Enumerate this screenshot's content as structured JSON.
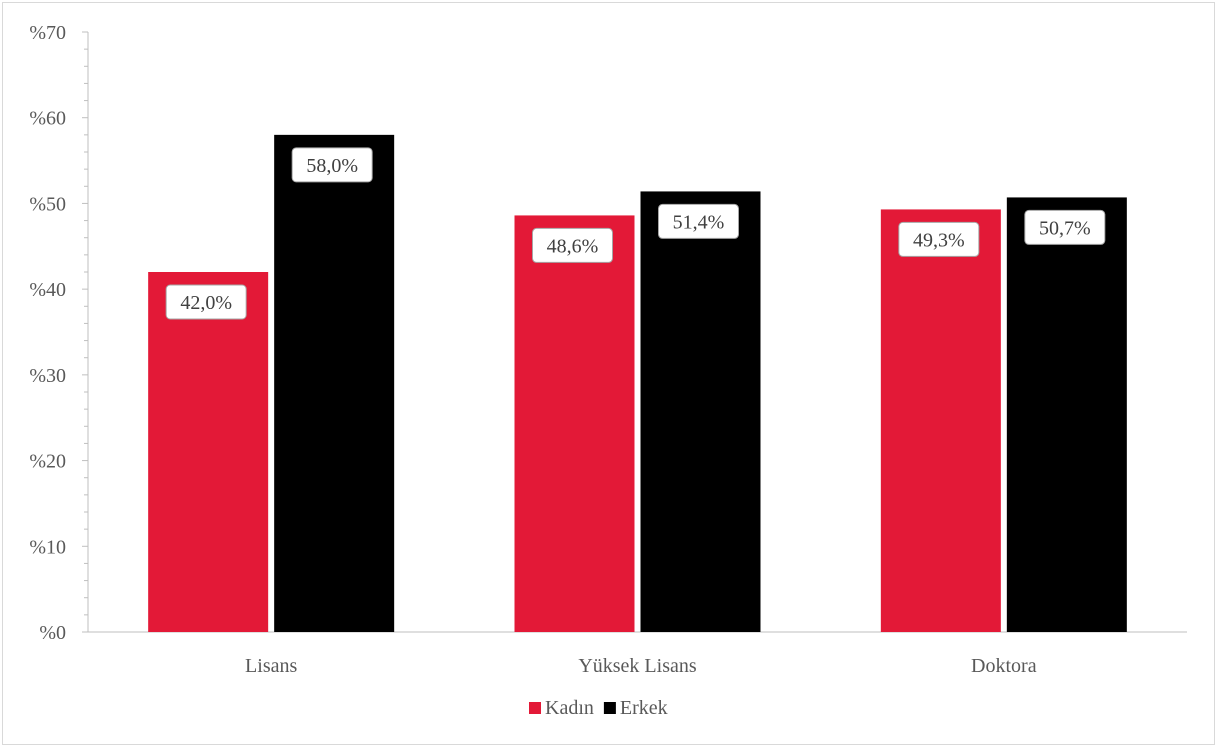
{
  "chart_data": {
    "type": "bar",
    "categories": [
      "Lisans",
      "Yüksek Lisans",
      "Doktora"
    ],
    "series": [
      {
        "name": "Kadın",
        "values": [
          42.0,
          48.6,
          49.3
        ],
        "labels": [
          "42,0%",
          "48,6%",
          "49,3%"
        ],
        "color": "#e31937"
      },
      {
        "name": "Erkek",
        "values": [
          58.0,
          51.4,
          50.7
        ],
        "labels": [
          "58,0%",
          "51,4%",
          "50,7%"
        ],
        "color": "#000000"
      }
    ],
    "y_ticks": [
      "%0",
      "%10",
      "%20",
      "%30",
      "%40",
      "%50",
      "%60",
      "%70"
    ],
    "ylim": [
      0,
      70
    ],
    "title": "",
    "xlabel": "",
    "ylabel": "",
    "legend_position": "bottom",
    "grid": false
  }
}
